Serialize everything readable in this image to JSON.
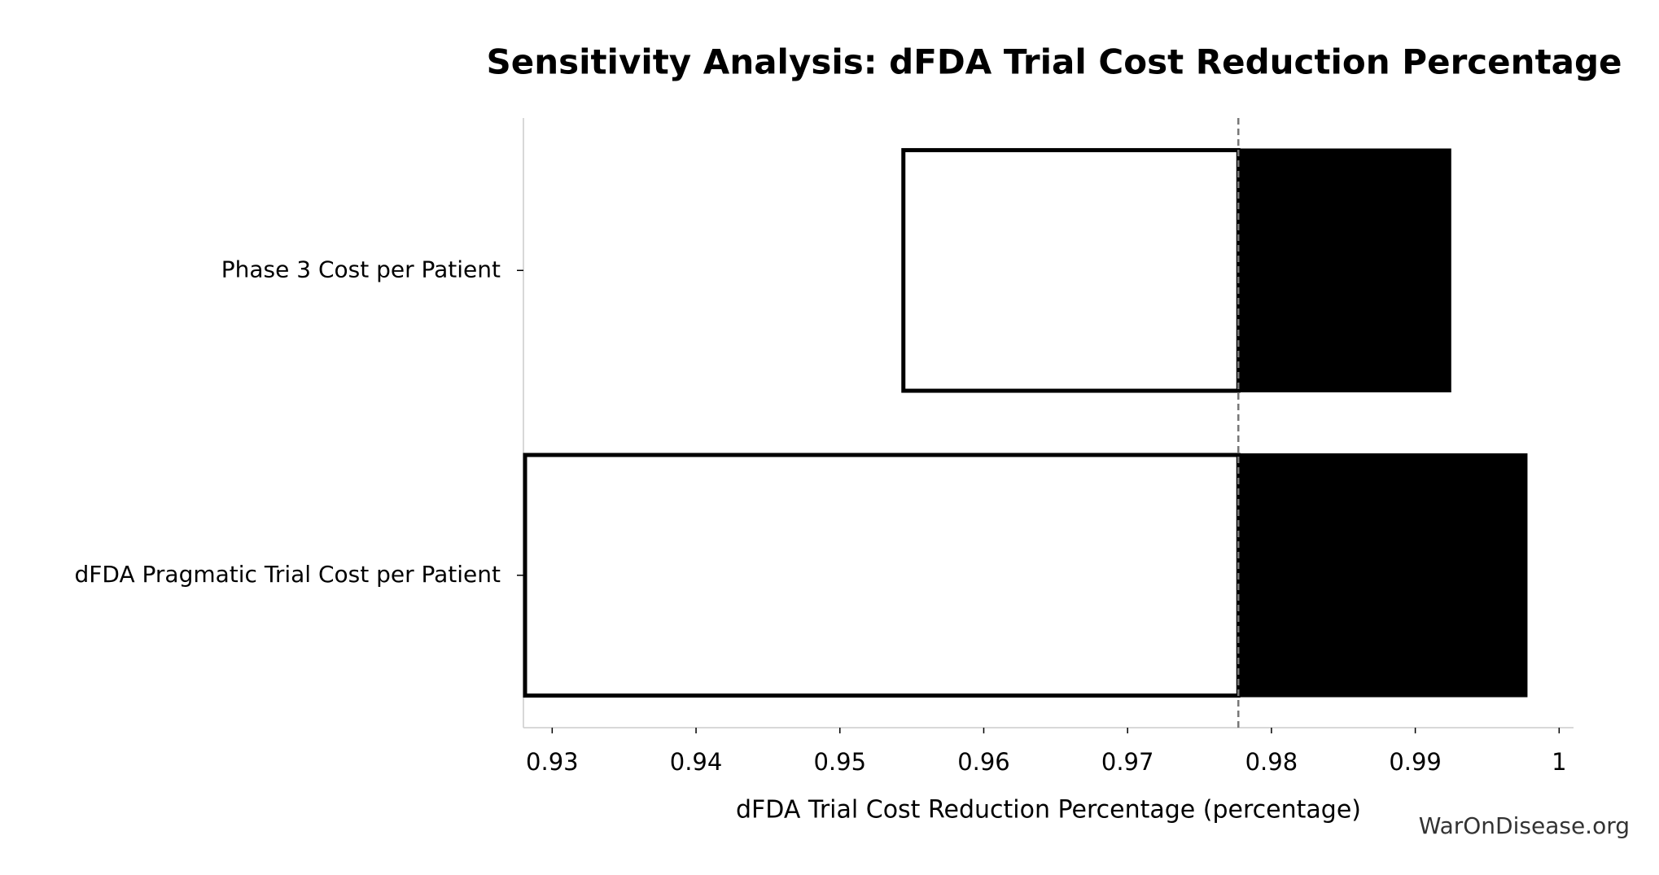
{
  "chart_data": {
    "type": "tornado",
    "title": "Sensitivity Analysis: dFDA Trial Cost Reduction Percentage",
    "x_label": "dFDA Trial Cost Reduction Percentage (percentage)",
    "watermark": "WarOnDisease.org",
    "categories": [
      "Phase 3 Cost per Patient",
      "dFDA Pragmatic Trial Cost per Patient"
    ],
    "baseline": 0.9777,
    "low_values": [
      0.9543,
      0.928
    ],
    "high_values": [
      0.9925,
      0.9978
    ],
    "low_color": "#ffffff",
    "high_color": "#000000",
    "xlim": [
      0.928,
      1.001
    ],
    "xticks": [
      0.93,
      0.94,
      0.95,
      0.96,
      0.97,
      0.98,
      0.99,
      1
    ]
  }
}
